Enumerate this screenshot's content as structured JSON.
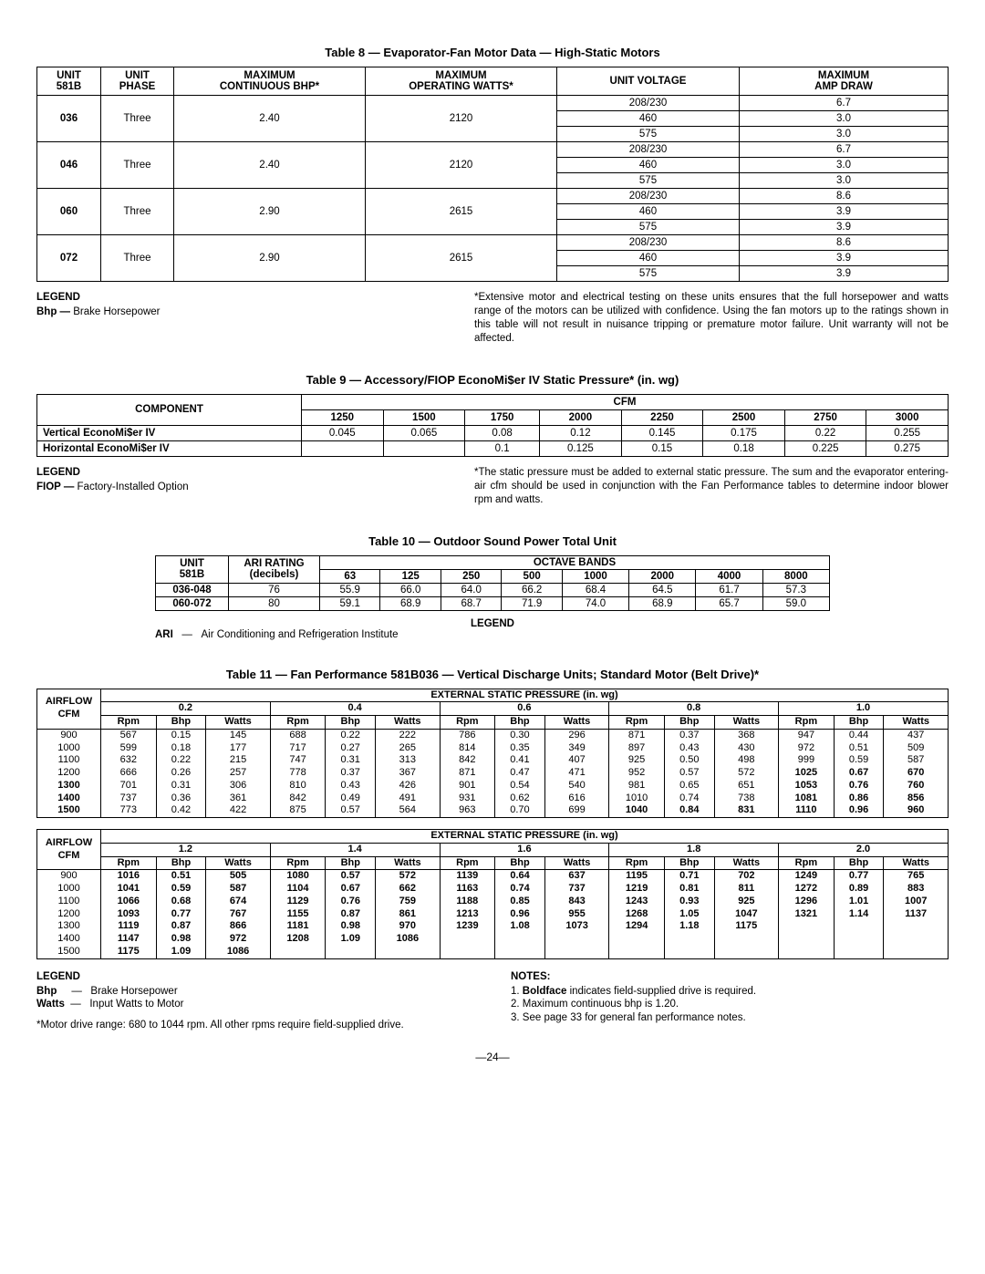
{
  "table8": {
    "title": "Table 8 — Evaporator-Fan Motor Data — High-Static Motors",
    "headers": {
      "unit581b": "UNIT 581B",
      "unitPhase": "UNIT PHASE",
      "maxContBhp": "MAXIMUM CONTINUOUS BHP*",
      "maxOpWatts": "MAXIMUM OPERATING WATTS*",
      "unitVoltage": "UNIT VOLTAGE",
      "maxAmpDraw": "MAXIMUM AMP DRAW"
    },
    "groups": [
      {
        "unit": "036",
        "phase": "Three",
        "bhp": "2.40",
        "watts": "2120",
        "volts": [
          [
            "208/230",
            "6.7"
          ],
          [
            "460",
            "3.0"
          ],
          [
            "575",
            "3.0"
          ]
        ]
      },
      {
        "unit": "046",
        "phase": "Three",
        "bhp": "2.40",
        "watts": "2120",
        "volts": [
          [
            "208/230",
            "6.7"
          ],
          [
            "460",
            "3.0"
          ],
          [
            "575",
            "3.0"
          ]
        ]
      },
      {
        "unit": "060",
        "phase": "Three",
        "bhp": "2.90",
        "watts": "2615",
        "volts": [
          [
            "208/230",
            "8.6"
          ],
          [
            "460",
            "3.9"
          ],
          [
            "575",
            "3.9"
          ]
        ]
      },
      {
        "unit": "072",
        "phase": "Three",
        "bhp": "2.90",
        "watts": "2615",
        "volts": [
          [
            "208/230",
            "8.6"
          ],
          [
            "460",
            "3.9"
          ],
          [
            "575",
            "3.9"
          ]
        ]
      }
    ],
    "legend": {
      "title": "LEGEND",
      "bhp": "Bhp — Brake Horsepower"
    },
    "note": "*Extensive motor and electrical testing on these units ensures that the full horsepower and watts range of the motors can be utilized with confidence. Using the fan motors up to the ratings shown in this table will not result in nuisance tripping or premature motor failure. Unit warranty will not be affected."
  },
  "table9": {
    "title": "Table 9 — Accessory/FIOP EconoMi$er IV Static Pressure* (in. wg)",
    "compHeader": "COMPONENT",
    "cfmHeader": "CFM",
    "cfm": [
      "1250",
      "1500",
      "1750",
      "2000",
      "2250",
      "2500",
      "2750",
      "3000"
    ],
    "rows": [
      {
        "name": "Vertical EconoMi$er IV",
        "vals": [
          "0.045",
          "0.065",
          "0.08",
          "0.12",
          "0.145",
          "0.175",
          "0.22",
          "0.255"
        ]
      },
      {
        "name": "Horizontal EconoMi$er IV",
        "vals": [
          "",
          "",
          "0.1",
          "0.125",
          "0.15",
          "0.18",
          "0.225",
          "0.275"
        ]
      }
    ],
    "legend": {
      "title": "LEGEND",
      "fiop": "FIOP — Factory-Installed Option"
    },
    "note": "*The static pressure must be added to external static pressure. The sum and the evaporator entering-air cfm should be used in conjunction with the Fan Performance tables to determine indoor blower rpm and watts."
  },
  "table10": {
    "title": "Table 10 — Outdoor Sound Power Total Unit",
    "headers": {
      "unit": "UNIT 581B",
      "ari": "ARI RATING (decibels)",
      "octave": "OCTAVE BANDS"
    },
    "bands": [
      "63",
      "125",
      "250",
      "500",
      "1000",
      "2000",
      "4000",
      "8000"
    ],
    "rows": [
      {
        "unit": "036-048",
        "ari": "76",
        "vals": [
          "55.9",
          "66.0",
          "64.0",
          "66.2",
          "68.4",
          "64.5",
          "61.7",
          "57.3"
        ]
      },
      {
        "unit": "060-072",
        "ari": "80",
        "vals": [
          "59.1",
          "68.9",
          "68.7",
          "71.9",
          "74.0",
          "68.9",
          "65.7",
          "59.0"
        ]
      }
    ],
    "legend": {
      "title": "LEGEND",
      "ari": "ARI   —   Air Conditioning and Refrigeration Institute"
    }
  },
  "table11": {
    "title": "Table 11 — Fan Performance 581B036 — Vertical Discharge Units; Standard Motor (Belt Drive)*",
    "espHeader": "EXTERNAL STATIC PRESSURE (in. wg)",
    "airflowHeader": "AIRFLOW CFM",
    "subheads": [
      "Rpm",
      "Bhp",
      "Watts"
    ],
    "sectionA": {
      "pressures": [
        "0.2",
        "0.4",
        "0.6",
        "0.8",
        "1.0"
      ],
      "rows": [
        {
          "cfm": "900",
          "d": [
            [
              "567",
              "0.15",
              "145"
            ],
            [
              "688",
              "0.22",
              "222"
            ],
            [
              "786",
              "0.30",
              "296"
            ],
            [
              "871",
              "0.37",
              "368"
            ],
            [
              "947",
              "0.44",
              "437"
            ]
          ],
          "bold": []
        },
        {
          "cfm": "1000",
          "d": [
            [
              "599",
              "0.18",
              "177"
            ],
            [
              "717",
              "0.27",
              "265"
            ],
            [
              "814",
              "0.35",
              "349"
            ],
            [
              "897",
              "0.43",
              "430"
            ],
            [
              "972",
              "0.51",
              "509"
            ]
          ],
          "bold": []
        },
        {
          "cfm": "1100",
          "d": [
            [
              "632",
              "0.22",
              "215"
            ],
            [
              "747",
              "0.31",
              "313"
            ],
            [
              "842",
              "0.41",
              "407"
            ],
            [
              "925",
              "0.50",
              "498"
            ],
            [
              "999",
              "0.59",
              "587"
            ]
          ],
          "bold": []
        },
        {
          "cfm": "1200",
          "d": [
            [
              "666",
              "0.26",
              "257"
            ],
            [
              "778",
              "0.37",
              "367"
            ],
            [
              "871",
              "0.47",
              "471"
            ],
            [
              "952",
              "0.57",
              "572"
            ],
            [
              "1025",
              "0.67",
              "670"
            ]
          ],
          "bold": [
            4
          ]
        },
        {
          "cfm": "1300",
          "d": [
            [
              "701",
              "0.31",
              "306"
            ],
            [
              "810",
              "0.43",
              "426"
            ],
            [
              "901",
              "0.54",
              "540"
            ],
            [
              "981",
              "0.65",
              "651"
            ],
            [
              "1053",
              "0.76",
              "760"
            ]
          ],
          "bold": [
            4
          ],
          "boldcfm": true
        },
        {
          "cfm": "1400",
          "d": [
            [
              "737",
              "0.36",
              "361"
            ],
            [
              "842",
              "0.49",
              "491"
            ],
            [
              "931",
              "0.62",
              "616"
            ],
            [
              "1010",
              "0.74",
              "738"
            ],
            [
              "1081",
              "0.86",
              "856"
            ]
          ],
          "bold": [
            4
          ],
          "boldcfm": true
        },
        {
          "cfm": "1500",
          "d": [
            [
              "773",
              "0.42",
              "422"
            ],
            [
              "875",
              "0.57",
              "564"
            ],
            [
              "963",
              "0.70",
              "699"
            ],
            [
              "1040",
              "0.84",
              "831"
            ],
            [
              "1110",
              "0.96",
              "960"
            ]
          ],
          "bold": [
            3,
            4
          ],
          "boldcfm": true
        }
      ]
    },
    "sectionB": {
      "pressures": [
        "1.2",
        "1.4",
        "1.6",
        "1.8",
        "2.0"
      ],
      "rows": [
        {
          "cfm": "900",
          "d": [
            [
              "1016",
              "0.51",
              "505"
            ],
            [
              "1080",
              "0.57",
              "572"
            ],
            [
              "1139",
              "0.64",
              "637"
            ],
            [
              "1195",
              "0.71",
              "702"
            ],
            [
              "1249",
              "0.77",
              "765"
            ]
          ],
          "bold": [
            0,
            1,
            2,
            3,
            4
          ]
        },
        {
          "cfm": "1000",
          "d": [
            [
              "1041",
              "0.59",
              "587"
            ],
            [
              "1104",
              "0.67",
              "662"
            ],
            [
              "1163",
              "0.74",
              "737"
            ],
            [
              "1219",
              "0.81",
              "811"
            ],
            [
              "1272",
              "0.89",
              "883"
            ]
          ],
          "bold": [
            0,
            1,
            2,
            3,
            4
          ]
        },
        {
          "cfm": "1100",
          "d": [
            [
              "1066",
              "0.68",
              "674"
            ],
            [
              "1129",
              "0.76",
              "759"
            ],
            [
              "1188",
              "0.85",
              "843"
            ],
            [
              "1243",
              "0.93",
              "925"
            ],
            [
              "1296",
              "1.01",
              "1007"
            ]
          ],
          "bold": [
            0,
            1,
            2,
            3,
            4
          ]
        },
        {
          "cfm": "1200",
          "d": [
            [
              "1093",
              "0.77",
              "767"
            ],
            [
              "1155",
              "0.87",
              "861"
            ],
            [
              "1213",
              "0.96",
              "955"
            ],
            [
              "1268",
              "1.05",
              "1047"
            ],
            [
              "1321",
              "1.14",
              "1137"
            ]
          ],
          "bold": [
            0,
            1,
            2,
            3,
            4
          ]
        },
        {
          "cfm": "1300",
          "d": [
            [
              "1119",
              "0.87",
              "866"
            ],
            [
              "1181",
              "0.98",
              "970"
            ],
            [
              "1239",
              "1.08",
              "1073"
            ],
            [
              "1294",
              "1.18",
              "1175"
            ],
            [
              "",
              "",
              ""
            ]
          ],
          "bold": [
            0,
            1,
            2,
            3
          ]
        },
        {
          "cfm": "1400",
          "d": [
            [
              "1147",
              "0.98",
              "972"
            ],
            [
              "1208",
              "1.09",
              "1086"
            ],
            [
              "",
              "",
              ""
            ],
            [
              "",
              "",
              ""
            ],
            [
              "",
              "",
              ""
            ]
          ],
          "bold": [
            0,
            1
          ]
        },
        {
          "cfm": "1500",
          "d": [
            [
              "1175",
              "1.09",
              "1086"
            ],
            [
              "",
              "",
              ""
            ],
            [
              "",
              "",
              ""
            ],
            [
              "",
              "",
              ""
            ],
            [
              "",
              "",
              ""
            ]
          ],
          "bold": [
            0
          ]
        }
      ]
    },
    "legend": {
      "title": "LEGEND",
      "bhp": "Bhp     —   Brake Horsepower",
      "watts": "Watts  —   Input Watts to Motor",
      "motorRange": "*Motor drive range: 680 to 1044 rpm. All other rpms require field-supplied drive."
    },
    "notes": {
      "title": "NOTES:",
      "items": [
        "1. Boldface indicates field-supplied drive is required.",
        "2. Maximum continuous bhp is 1.20.",
        "3. See page 33 for general fan performance notes."
      ]
    }
  },
  "pageNum": "—24—"
}
